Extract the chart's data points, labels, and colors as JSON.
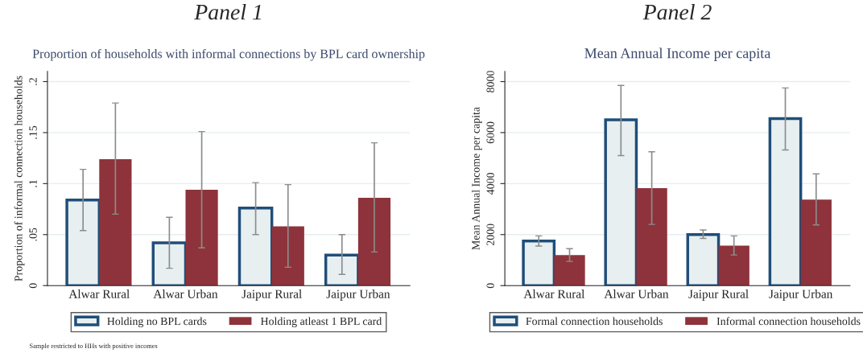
{
  "chart_data": [
    {
      "type": "bar",
      "title": "Proportion of households with informal connections by BPL card ownership",
      "ylabel": "Proportion of informal connection households",
      "annotations": [
        "Panel 1",
        "Sample restricted to HHs with positive incomes"
      ],
      "categories": [
        "Alwar Rural",
        "Alwar Urban",
        "Jaipur Rural",
        "Jaipur Urban"
      ],
      "series": [
        {
          "name": "Holding no BPL cards",
          "color": "#e8eff1",
          "values": [
            0.084,
            0.042,
            0.076,
            0.03
          ],
          "errors": [
            [
              0.054,
              0.114
            ],
            [
              0.017,
              0.067
            ],
            [
              0.05,
              0.101
            ],
            [
              0.011,
              0.05
            ]
          ]
        },
        {
          "name": "Holding atleast 1 BPL card",
          "color": "#8e333b",
          "values": [
            0.124,
            0.094,
            0.058,
            0.086
          ],
          "errors": [
            [
              0.07,
              0.179
            ],
            [
              0.037,
              0.151
            ],
            [
              0.018,
              0.099
            ],
            [
              0.033,
              0.14
            ]
          ]
        }
      ],
      "ylim": [
        0,
        0.21
      ],
      "yticks": [
        {
          "value": 0,
          "label": "0"
        },
        {
          "value": 0.05,
          "label": ".05"
        },
        {
          "value": 0.1,
          "label": ".1"
        },
        {
          "value": 0.15,
          "label": ".15"
        },
        {
          "value": 0.2,
          "label": ".2"
        }
      ],
      "grid": "y",
      "legend": "bottom"
    },
    {
      "type": "bar",
      "title": "Mean Annual Income per capita",
      "ylabel": "Mean Annual Income per capita",
      "annotations": [
        "Panel 2"
      ],
      "categories": [
        "Alwar Rural",
        "Alwar Urban",
        "Jaipur Rural",
        "Jaipur Urban"
      ],
      "series": [
        {
          "name": "Formal connection households",
          "color": "#e8eff1",
          "values": [
            1750,
            6500,
            2000,
            6550
          ],
          "errors": [
            [
              1550,
              1950
            ],
            [
              5100,
              7850
            ],
            [
              1850,
              2180
            ],
            [
              5320,
              7750
            ]
          ]
        },
        {
          "name": "Informal connection households",
          "color": "#8e333b",
          "values": [
            1200,
            3820,
            1570,
            3370
          ],
          "errors": [
            [
              950,
              1450
            ],
            [
              2400,
              5250
            ],
            [
              1200,
              1950
            ],
            [
              2380,
              4380
            ]
          ]
        }
      ],
      "ylim": [
        0,
        8400
      ],
      "yticks": [
        0,
        2000,
        4000,
        6000,
        8000
      ],
      "grid": "y",
      "legend": "bottom"
    }
  ]
}
